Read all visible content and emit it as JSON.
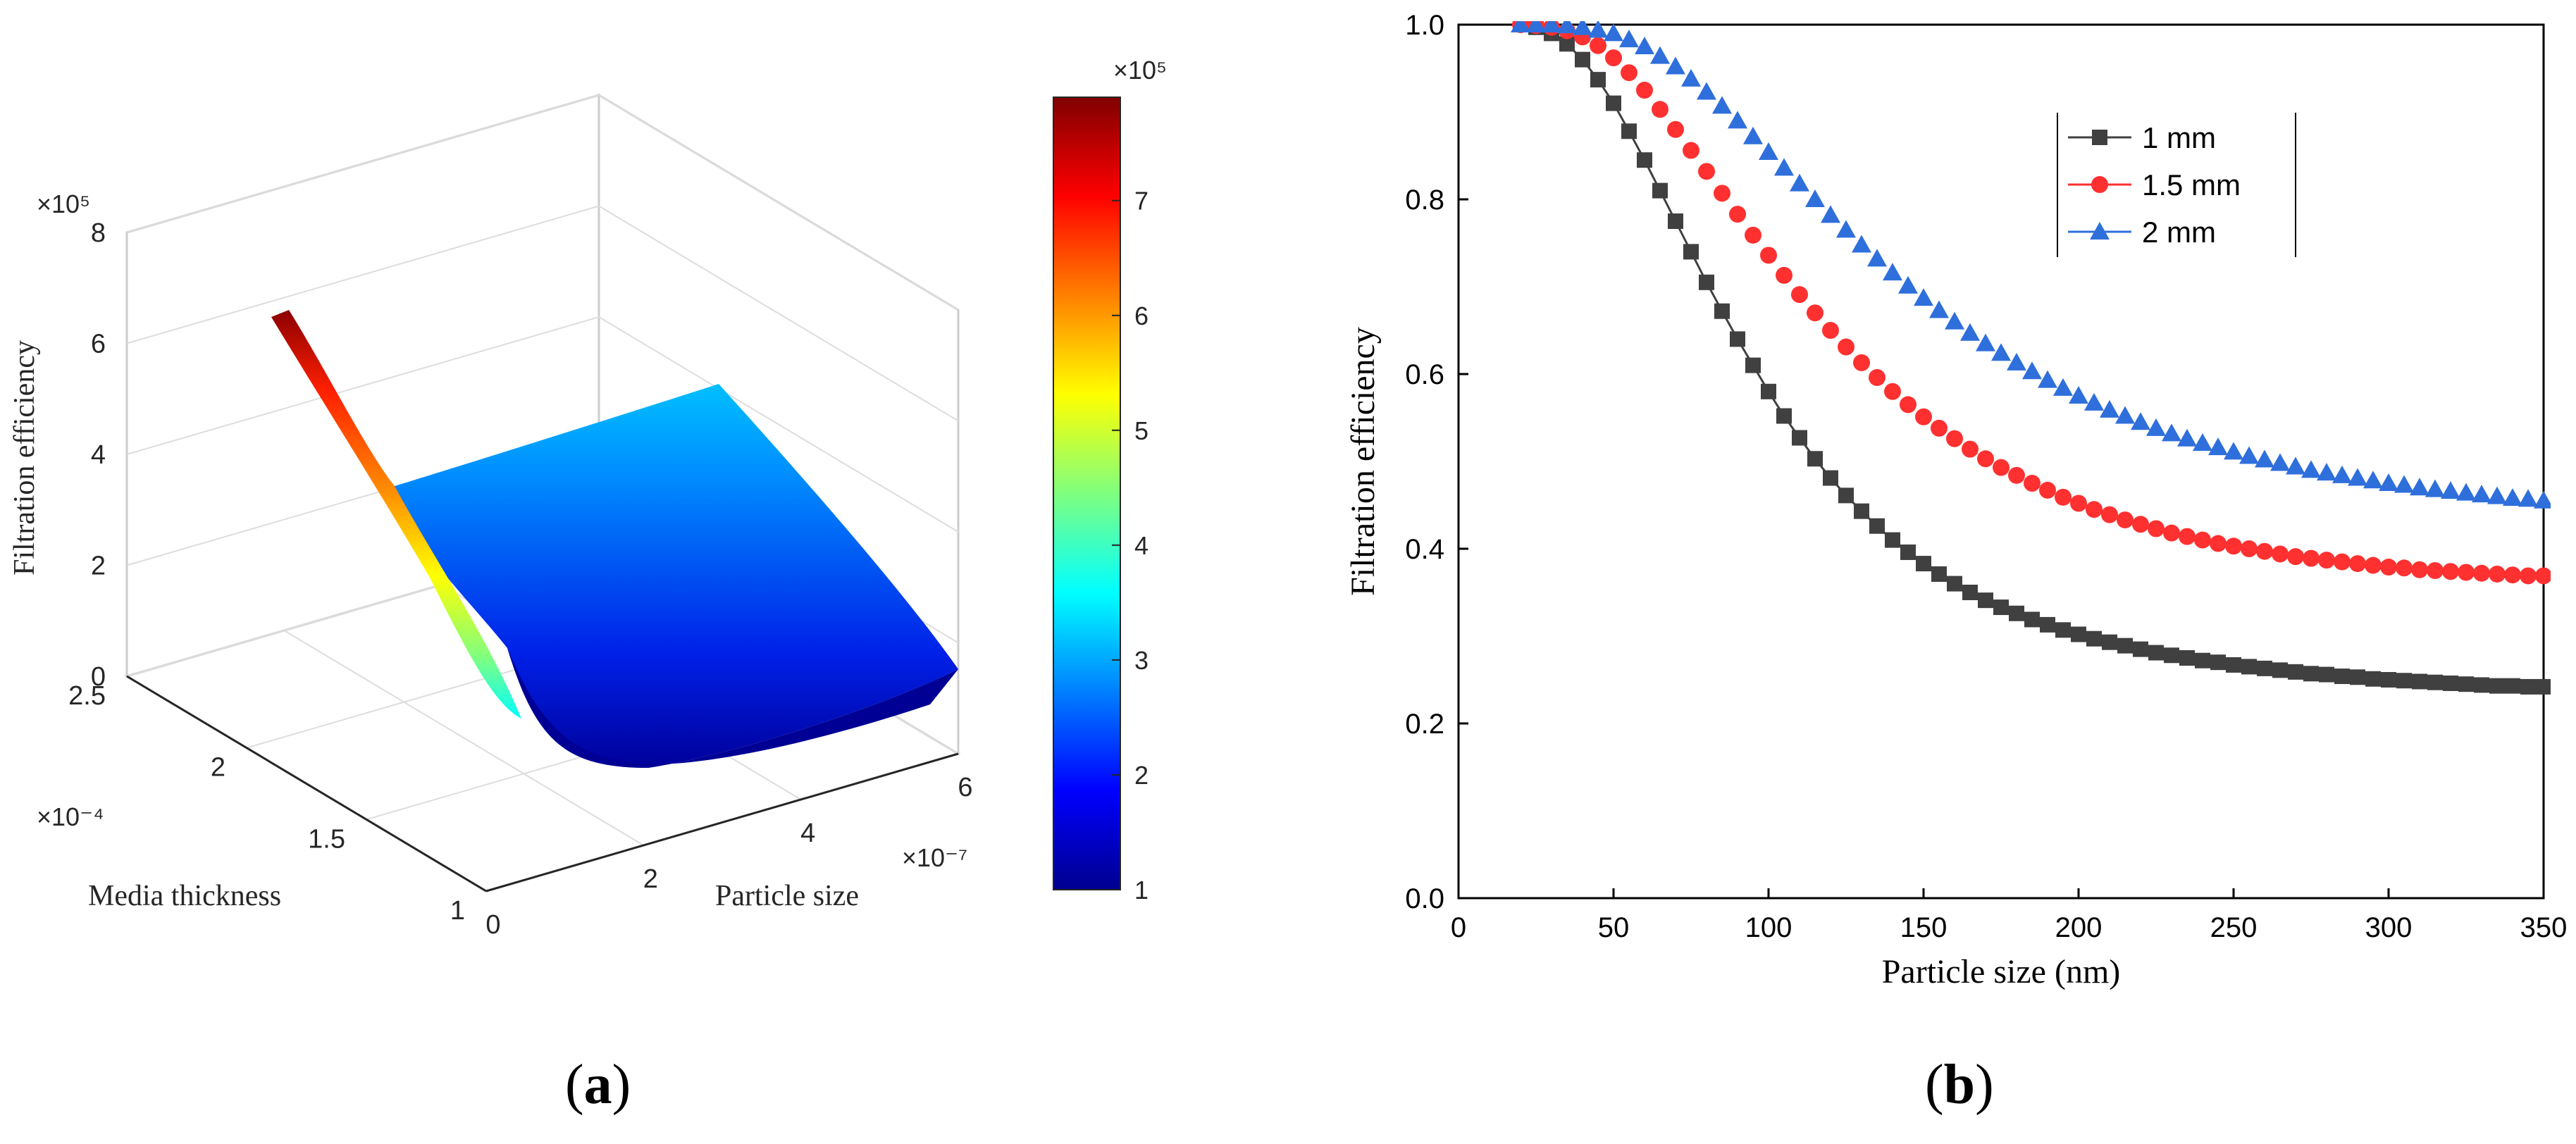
{
  "captions": {
    "a": "a",
    "b": "b"
  },
  "chart_data": [
    {
      "id": "a",
      "type": "surface",
      "title": "",
      "zlabel": "Filtration efficiency",
      "xlabel": "Particle size",
      "ylabel": "Media thickness",
      "x_multiplier": "×10⁻⁷",
      "y_multiplier": "×10⁻⁴",
      "z_multiplier": "×10⁵",
      "x_ticks": [
        "0",
        "2",
        "4",
        "6"
      ],
      "y_ticks": [
        "1",
        "1.5",
        "2",
        "2.5"
      ],
      "z_ticks": [
        "0",
        "2",
        "4",
        "6",
        "8"
      ],
      "xlim": [
        0,
        6
      ],
      "ylim": [
        1,
        2.5
      ],
      "zlim": [
        0,
        8
      ],
      "grid": true,
      "colormap": "jet",
      "colors": [
        "#00008f",
        "#0000ff",
        "#0080ff",
        "#00ffff",
        "#80ff80",
        "#ffff00",
        "#ff8000",
        "#ff0000",
        "#800000"
      ],
      "colorbar": {
        "range": [
          1,
          7.9
        ],
        "ticks": [
          "1",
          "2",
          "3",
          "4",
          "5",
          "6",
          "7"
        ],
        "multiplier": "×10⁵"
      },
      "surface_profiles": {
        "particle_size": [
          0.2,
          0.5,
          1,
          1.5,
          2,
          2.5,
          3,
          3.5,
          4,
          4.5,
          5,
          5.5,
          6
        ],
        "efficiency_thick_edge": [
          6.7,
          5.2,
          3.5,
          2.8,
          2.6,
          2.55,
          2.6,
          2.7,
          2.85,
          3.0,
          3.2,
          3.4,
          3.6
        ],
        "efficiency_thin_edge": [
          3.5,
          2.7,
          1.8,
          1.35,
          1.15,
          1.05,
          1.0,
          1.0,
          1.02,
          1.05,
          1.1,
          1.15,
          1.2
        ]
      }
    },
    {
      "id": "b",
      "type": "scatter",
      "title": "",
      "xlabel": "Particle size (nm)",
      "ylabel": "Filtration efficiency",
      "xlim": [
        0,
        350
      ],
      "ylim": [
        0,
        1
      ],
      "x_ticks": [
        "0",
        "50",
        "100",
        "150",
        "200",
        "250",
        "300",
        "350"
      ],
      "y_ticks": [
        "0.0",
        "0.2",
        "0.4",
        "0.6",
        "0.8",
        "1.0"
      ],
      "legend_position": "top-right",
      "x": [
        20,
        25,
        30,
        35,
        40,
        45,
        50,
        55,
        60,
        65,
        70,
        75,
        80,
        85,
        90,
        95,
        100,
        105,
        110,
        115,
        120,
        125,
        130,
        135,
        140,
        145,
        150,
        155,
        160,
        165,
        170,
        175,
        180,
        185,
        190,
        195,
        200,
        205,
        210,
        215,
        220,
        225,
        230,
        235,
        240,
        245,
        250,
        255,
        260,
        265,
        270,
        275,
        280,
        285,
        290,
        295,
        300,
        305,
        310,
        315,
        320,
        325,
        330,
        335,
        340,
        345,
        350
      ],
      "series": [
        {
          "name": "1 mm",
          "marker": "square",
          "color": "#404040",
          "line": true,
          "values": [
            1.0,
            0.997,
            0.99,
            0.978,
            0.96,
            0.937,
            0.91,
            0.878,
            0.845,
            0.81,
            0.775,
            0.74,
            0.705,
            0.672,
            0.64,
            0.61,
            0.58,
            0.552,
            0.527,
            0.503,
            0.481,
            0.461,
            0.443,
            0.426,
            0.41,
            0.396,
            0.383,
            0.371,
            0.36,
            0.35,
            0.341,
            0.333,
            0.326,
            0.319,
            0.313,
            0.307,
            0.302,
            0.297,
            0.293,
            0.289,
            0.285,
            0.281,
            0.278,
            0.275,
            0.272,
            0.27,
            0.267,
            0.265,
            0.263,
            0.261,
            0.259,
            0.257,
            0.256,
            0.254,
            0.253,
            0.251,
            0.25,
            0.249,
            0.248,
            0.247,
            0.246,
            0.245,
            0.244,
            0.243,
            0.243,
            0.242,
            0.242
          ]
        },
        {
          "name": "1.5 mm",
          "marker": "circle",
          "color": "#ff3030",
          "line": false,
          "values": [
            1.0,
            0.999,
            0.997,
            0.993,
            0.986,
            0.976,
            0.962,
            0.945,
            0.925,
            0.903,
            0.88,
            0.856,
            0.832,
            0.807,
            0.783,
            0.759,
            0.736,
            0.713,
            0.691,
            0.67,
            0.65,
            0.631,
            0.613,
            0.596,
            0.58,
            0.565,
            0.551,
            0.538,
            0.526,
            0.514,
            0.503,
            0.493,
            0.484,
            0.475,
            0.467,
            0.459,
            0.452,
            0.445,
            0.439,
            0.433,
            0.428,
            0.423,
            0.418,
            0.414,
            0.41,
            0.406,
            0.403,
            0.4,
            0.397,
            0.394,
            0.391,
            0.389,
            0.387,
            0.385,
            0.383,
            0.381,
            0.379,
            0.378,
            0.376,
            0.375,
            0.374,
            0.373,
            0.372,
            0.371,
            0.37,
            0.369,
            0.369
          ]
        },
        {
          "name": "2 mm",
          "marker": "triangle",
          "color": "#2f6fdc",
          "line": false,
          "values": [
            1.0,
            1.0,
            1.0,
            0.999,
            0.997,
            0.994,
            0.99,
            0.983,
            0.975,
            0.964,
            0.952,
            0.938,
            0.923,
            0.907,
            0.89,
            0.872,
            0.854,
            0.836,
            0.818,
            0.8,
            0.782,
            0.765,
            0.748,
            0.732,
            0.716,
            0.701,
            0.687,
            0.673,
            0.66,
            0.647,
            0.635,
            0.624,
            0.613,
            0.603,
            0.593,
            0.584,
            0.575,
            0.567,
            0.559,
            0.552,
            0.545,
            0.538,
            0.532,
            0.526,
            0.521,
            0.516,
            0.511,
            0.506,
            0.502,
            0.498,
            0.494,
            0.49,
            0.487,
            0.484,
            0.481,
            0.478,
            0.475,
            0.473,
            0.47,
            0.468,
            0.466,
            0.464,
            0.462,
            0.46,
            0.458,
            0.457,
            0.455
          ]
        }
      ]
    }
  ]
}
